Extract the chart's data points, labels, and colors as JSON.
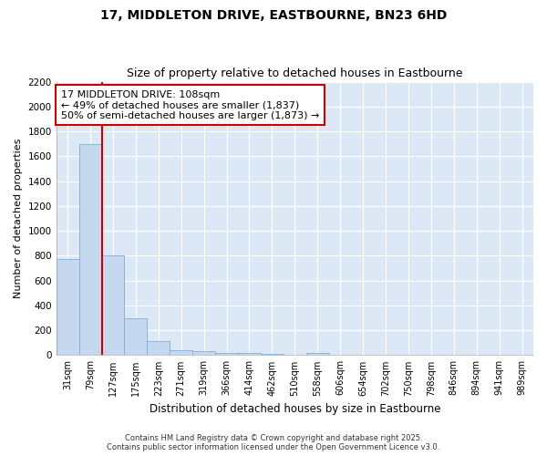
{
  "title1": "17, MIDDLETON DRIVE, EASTBOURNE, BN23 6HD",
  "title2": "Size of property relative to detached houses in Eastbourne",
  "xlabel": "Distribution of detached houses by size in Eastbourne",
  "ylabel": "Number of detached properties",
  "bar_labels": [
    "31sqm",
    "79sqm",
    "127sqm",
    "175sqm",
    "223sqm",
    "271sqm",
    "319sqm",
    "366sqm",
    "414sqm",
    "462sqm",
    "510sqm",
    "558sqm",
    "606sqm",
    "654sqm",
    "702sqm",
    "750sqm",
    "798sqm",
    "846sqm",
    "894sqm",
    "941sqm",
    "989sqm"
  ],
  "bar_values": [
    770,
    1700,
    800,
    295,
    110,
    40,
    30,
    20,
    15,
    10,
    0,
    15,
    0,
    0,
    0,
    0,
    0,
    0,
    0,
    0,
    0
  ],
  "bar_color": "#c5d8f0",
  "bar_edge_color": "#7aaedc",
  "annotation_text": "17 MIDDLETON DRIVE: 108sqm\n← 49% of detached houses are smaller (1,837)\n50% of semi-detached houses are larger (1,873) →",
  "annotation_box_color": "#ffffff",
  "annotation_box_edge": "#cc0000",
  "ylim": [
    0,
    2200
  ],
  "yticks": [
    0,
    200,
    400,
    600,
    800,
    1000,
    1200,
    1400,
    1600,
    1800,
    2000,
    2200
  ],
  "background_color": "#dce8f5",
  "grid_color": "#ffffff",
  "fig_background": "#ffffff",
  "footer1": "Contains HM Land Registry data © Crown copyright and database right 2025.",
  "footer2": "Contains public sector information licensed under the Open Government Licence v3.0."
}
